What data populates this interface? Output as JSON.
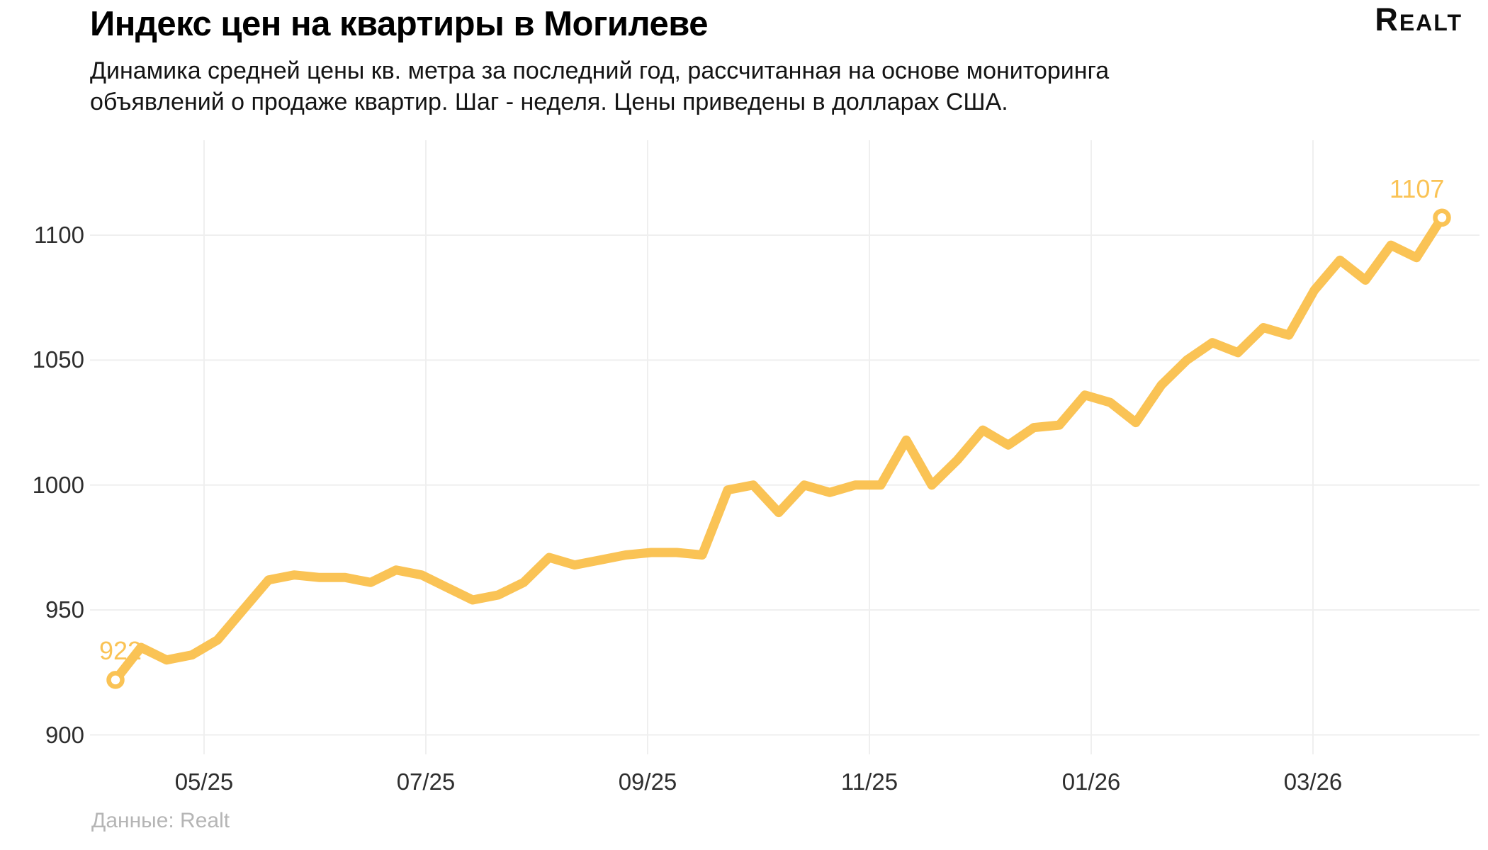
{
  "header": {
    "title": "Индекс цен на квартиры в Могилеве",
    "subtitle_lines": [
      "Динамика средней цены кв. метра за последний год, рассчитанная на основе мониторинга",
      "объявлений о продаже квартир. Шаг - неделя. Цены приведены в долларах США."
    ],
    "logo_text": "Realt"
  },
  "footer": {
    "source_text": "Данные: Realt"
  },
  "chart_data": {
    "type": "line",
    "title": "Индекс цен на квартиры в Могилеве",
    "x_step": "week",
    "x_tick_labels": [
      "05/25",
      "07/25",
      "09/25",
      "11/25",
      "01/26",
      "03/26"
    ],
    "y_ticks": [
      900,
      950,
      1000,
      1050,
      1100
    ],
    "ylim": [
      885,
      1125
    ],
    "grid": true,
    "legend": false,
    "values": [
      922,
      935,
      930,
      932,
      938,
      950,
      962,
      964,
      963,
      963,
      961,
      966,
      964,
      959,
      954,
      956,
      961,
      971,
      968,
      970,
      972,
      973,
      973,
      972,
      998,
      1000,
      989,
      1000,
      997,
      1000,
      1000,
      1018,
      1000,
      1010,
      1022,
      1016,
      1023,
      1024,
      1036,
      1033,
      1025,
      1040,
      1050,
      1057,
      1053,
      1063,
      1060,
      1078,
      1090,
      1082,
      1096,
      1091,
      1107
    ],
    "start_label": "922",
    "end_label": "1107",
    "line_color": "#FAC355",
    "marker_fill": "#ffffff",
    "grid_color": "#efefef",
    "tick_color": "#2e2e2e"
  }
}
